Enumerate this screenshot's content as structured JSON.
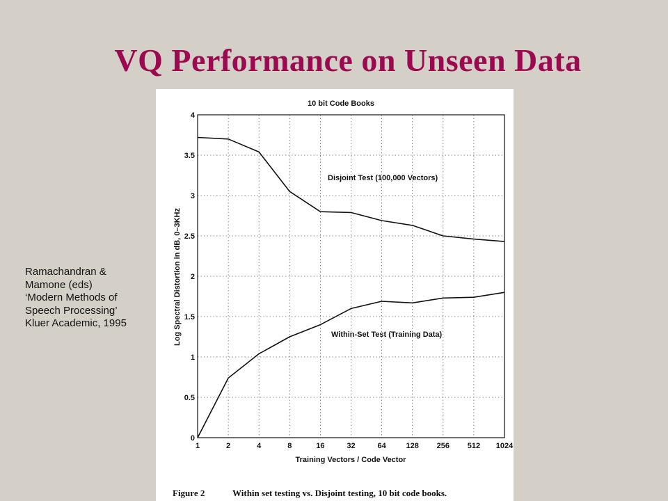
{
  "slide": {
    "title": "VQ Performance on Unseen Data",
    "title_color": "#9b0a50",
    "background": "#d4d0c8"
  },
  "citation": {
    "lines": [
      "Ramachandran &",
      "Mamone (eds)",
      "‘Modern Methods of",
      "Speech Processing’",
      "Kluer Academic, 1995"
    ]
  },
  "chart_data": {
    "type": "line",
    "title": "10 bit Code Books",
    "xlabel": "Training Vectors / Code Vector",
    "ylabel": "Log Spectral Distortion in dB, 0–3KHz",
    "categories": [
      "1",
      "2",
      "4",
      "8",
      "16",
      "32",
      "64",
      "128",
      "256",
      "512",
      "1024"
    ],
    "ylim": [
      0,
      4
    ],
    "yticks": [
      "0",
      "0.5",
      "1",
      "1.5",
      "2",
      "2.5",
      "3",
      "3.5",
      "4"
    ],
    "grid": true,
    "series": [
      {
        "name": "Disjoint Test (100,000 Vectors)",
        "values": [
          3.72,
          3.7,
          3.54,
          3.05,
          2.8,
          2.79,
          2.69,
          2.63,
          2.5,
          2.46,
          2.43
        ]
      },
      {
        "name": "Within-Set Test (Training Data)",
        "values": [
          0.0,
          0.74,
          1.04,
          1.25,
          1.4,
          1.6,
          1.69,
          1.67,
          1.73,
          1.74,
          1.8
        ]
      }
    ],
    "caption": {
      "label": "Figure 2",
      "text": "Within set testing vs. Disjoint testing, 10 bit code books."
    }
  }
}
